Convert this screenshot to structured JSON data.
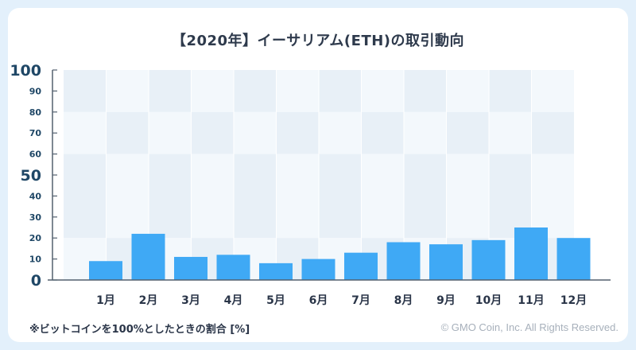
{
  "chart_data": {
    "type": "bar",
    "title": "【2020年】イーサリアム(ETH)の取引動向",
    "categories": [
      "1月",
      "2月",
      "3月",
      "4月",
      "5月",
      "6月",
      "7月",
      "8月",
      "9月",
      "10月",
      "11月",
      "12月"
    ],
    "values": [
      9,
      22,
      11,
      12,
      8,
      10,
      13,
      18,
      17,
      19,
      25,
      20
    ],
    "ylim": [
      0,
      100
    ],
    "yticks": [
      0,
      10,
      20,
      30,
      40,
      50,
      60,
      70,
      80,
      90,
      100
    ],
    "yticklabels": [
      "0",
      "10",
      "20",
      "30",
      "40",
      "50",
      "60",
      "70",
      "80",
      "90",
      "100"
    ],
    "major_ticks": [
      0,
      50,
      100
    ],
    "ylabel": "",
    "xlabel": "",
    "note": "※ビットコインを100%としたときの割合 [%]",
    "bar_color": "#3fa9f5"
  },
  "footer": {
    "credit": "© GMO Coin, Inc. All Rights Reserved."
  },
  "colors": {
    "background": "#e3f0fb",
    "card": "#ffffff",
    "band_dark": "#e8f0f7",
    "band_light": "#f3f8fc",
    "axis": "#53606f",
    "tick_label": "#1f4766"
  }
}
